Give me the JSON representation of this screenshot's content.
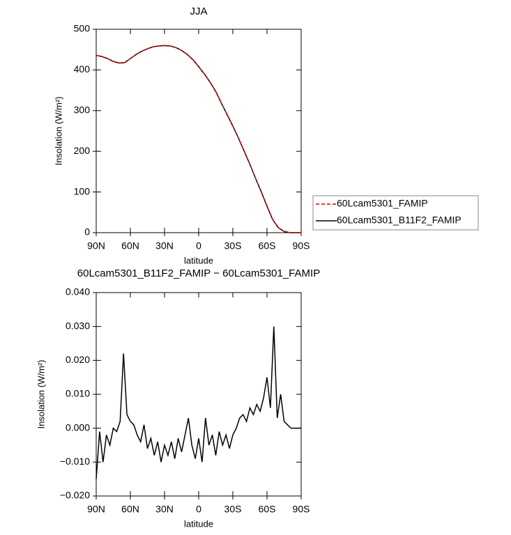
{
  "chart_data": [
    {
      "type": "line",
      "title": "JJA",
      "xlabel": "latitude",
      "ylabel": "Insolation (W/m²)",
      "x": [
        90,
        85,
        80,
        75,
        70,
        65,
        60,
        55,
        50,
        45,
        40,
        35,
        30,
        25,
        20,
        15,
        10,
        5,
        0,
        -5,
        -10,
        -15,
        -20,
        -25,
        -30,
        -35,
        -40,
        -45,
        -50,
        -55,
        -60,
        -65,
        -70,
        -75,
        -80,
        -85,
        -90
      ],
      "series": [
        {
          "name": "60Lcam5301_FAMIP",
          "color": "#cc0000",
          "dash": true,
          "values": [
            436,
            433,
            428,
            421,
            417,
            418,
            428,
            438,
            446,
            452,
            457,
            459,
            460,
            459,
            455,
            448,
            438,
            425,
            408,
            390,
            370,
            347,
            318,
            290,
            262,
            232,
            200,
            168,
            133,
            100,
            65,
            32,
            12,
            3,
            0,
            0,
            0
          ]
        },
        {
          "name": "60Lcam5301_B11F2_FAMIP",
          "color": "#000000",
          "dash": false,
          "values": [
            436,
            433,
            428,
            421,
            417,
            418,
            428,
            438,
            446,
            452,
            457,
            459,
            460,
            459,
            455,
            448,
            438,
            425,
            408,
            390,
            370,
            347,
            318,
            290,
            262,
            232,
            200,
            168,
            133,
            100,
            65,
            32,
            12,
            3,
            0,
            0,
            0
          ]
        }
      ],
      "xlim": [
        90,
        -90
      ],
      "xticks": [
        {
          "value": 90,
          "label": "90N"
        },
        {
          "value": 60,
          "label": "60N"
        },
        {
          "value": 30,
          "label": "30N"
        },
        0,
        {
          "value": -30,
          "label": "30S"
        },
        {
          "value": -60,
          "label": "60S"
        },
        {
          "value": -90,
          "label": "90S"
        }
      ],
      "ylim": [
        0,
        500
      ],
      "yticks": [
        0,
        100,
        200,
        300,
        400,
        500
      ],
      "legend": "right"
    },
    {
      "type": "line",
      "title": "60Lcam5301_B11F2_FAMIP − 60Lcam5301_FAMIP",
      "xlabel": "latitude",
      "ylabel": "Insolation (W/m²)",
      "x": [
        90,
        87,
        84,
        81,
        78,
        75,
        72,
        69,
        66,
        63,
        60,
        57,
        54,
        51,
        48,
        45,
        42,
        39,
        36,
        33,
        30,
        27,
        24,
        21,
        18,
        15,
        12,
        9,
        6,
        3,
        0,
        -3,
        -6,
        -9,
        -12,
        -15,
        -18,
        -21,
        -24,
        -27,
        -30,
        -33,
        -36,
        -39,
        -42,
        -45,
        -48,
        -51,
        -54,
        -57,
        -60,
        -63,
        -66,
        -69,
        -72,
        -75,
        -78,
        -81,
        -84,
        -87,
        -90
      ],
      "color": "#000000",
      "values": [
        -0.015,
        -0.001,
        -0.01,
        -0.002,
        -0.005,
        0.0,
        -0.001,
        0.002,
        0.022,
        0.004,
        0.002,
        0.001,
        -0.002,
        -0.004,
        0.001,
        -0.006,
        -0.003,
        -0.008,
        -0.004,
        -0.01,
        -0.005,
        -0.008,
        -0.004,
        -0.009,
        -0.003,
        -0.007,
        -0.002,
        0.003,
        -0.005,
        -0.009,
        -0.003,
        -0.01,
        0.003,
        -0.005,
        -0.002,
        -0.008,
        -0.001,
        -0.005,
        -0.002,
        -0.006,
        -0.002,
        0.0,
        0.003,
        0.004,
        0.002,
        0.006,
        0.004,
        0.007,
        0.005,
        0.009,
        0.015,
        0.006,
        0.03,
        0.003,
        0.01,
        0.002,
        0.001,
        0.0,
        0.0,
        0.0,
        0.0
      ],
      "xlim": [
        90,
        -90
      ],
      "xticks": [
        {
          "value": 90,
          "label": "90N"
        },
        {
          "value": 60,
          "label": "60N"
        },
        {
          "value": 30,
          "label": "30N"
        },
        0,
        {
          "value": -30,
          "label": "30S"
        },
        {
          "value": -60,
          "label": "60S"
        },
        {
          "value": -90,
          "label": "90S"
        }
      ],
      "ylim": [
        -0.02,
        0.04
      ],
      "yticks": [
        {
          "value": -0.02,
          "label": "−0.020"
        },
        {
          "value": -0.01,
          "label": "−0.010"
        },
        {
          "value": 0,
          "label": "0.000"
        },
        {
          "value": 0.01,
          "label": "0.010"
        },
        {
          "value": 0.02,
          "label": "0.020"
        },
        {
          "value": 0.03,
          "label": "0.030"
        },
        {
          "value": 0.04,
          "label": "0.040"
        }
      ]
    }
  ]
}
